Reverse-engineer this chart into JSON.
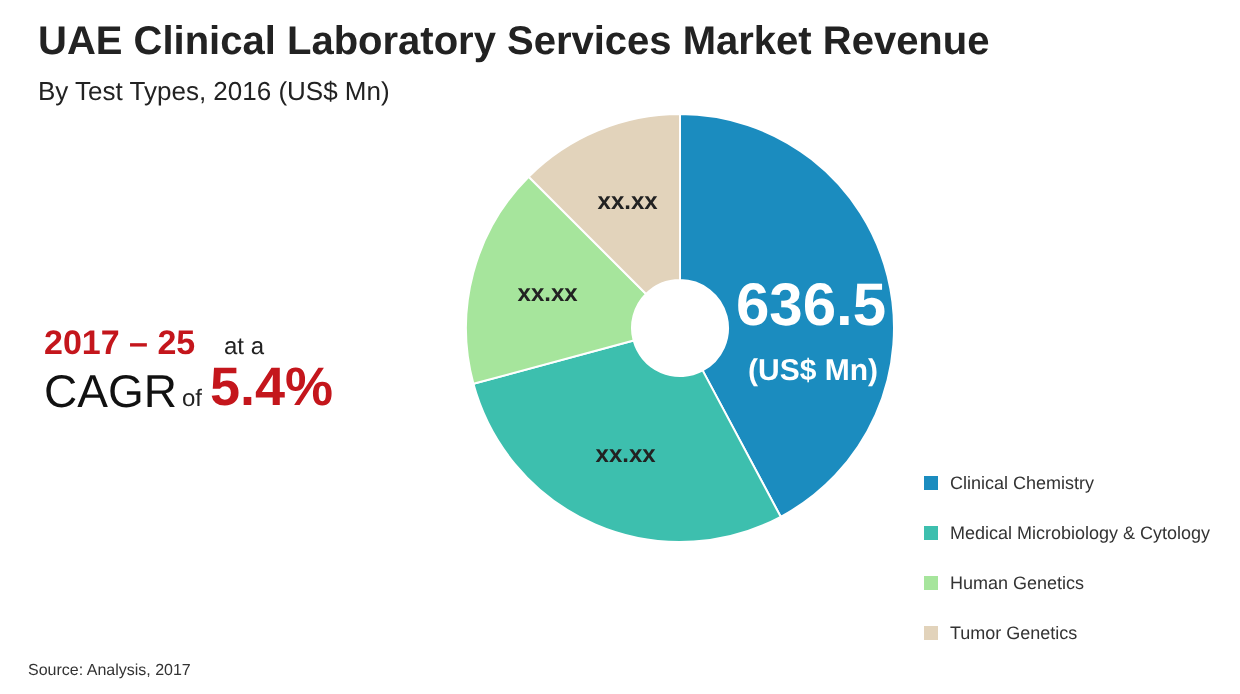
{
  "chart_data": {
    "type": "donut",
    "title": "UAE Clinical Laboratory Services Market Revenue",
    "subtitle": "By Test Types, 2016 (US$ Mn)",
    "categories": [
      "Clinical Chemistry",
      "Medical Microbiology & Cytology",
      "Human Genetics",
      "Tumor Genetics"
    ],
    "values": [
      42.2,
      28.6,
      16.7,
      12.5
    ],
    "colors": [
      "#1b8cbf",
      "#3dbfae",
      "#a6e59c",
      "#e2d3bb"
    ],
    "value_labels": [
      null,
      "xx.xx",
      "xx.xx",
      "xx.xx"
    ],
    "annotations": [
      "636.5",
      "(US$ Mn)",
      "2017 – 25",
      "at a",
      "CAGR",
      "of",
      "5.4%",
      "Source: Analysis, 2017"
    ],
    "legend": "bottom right"
  }
}
